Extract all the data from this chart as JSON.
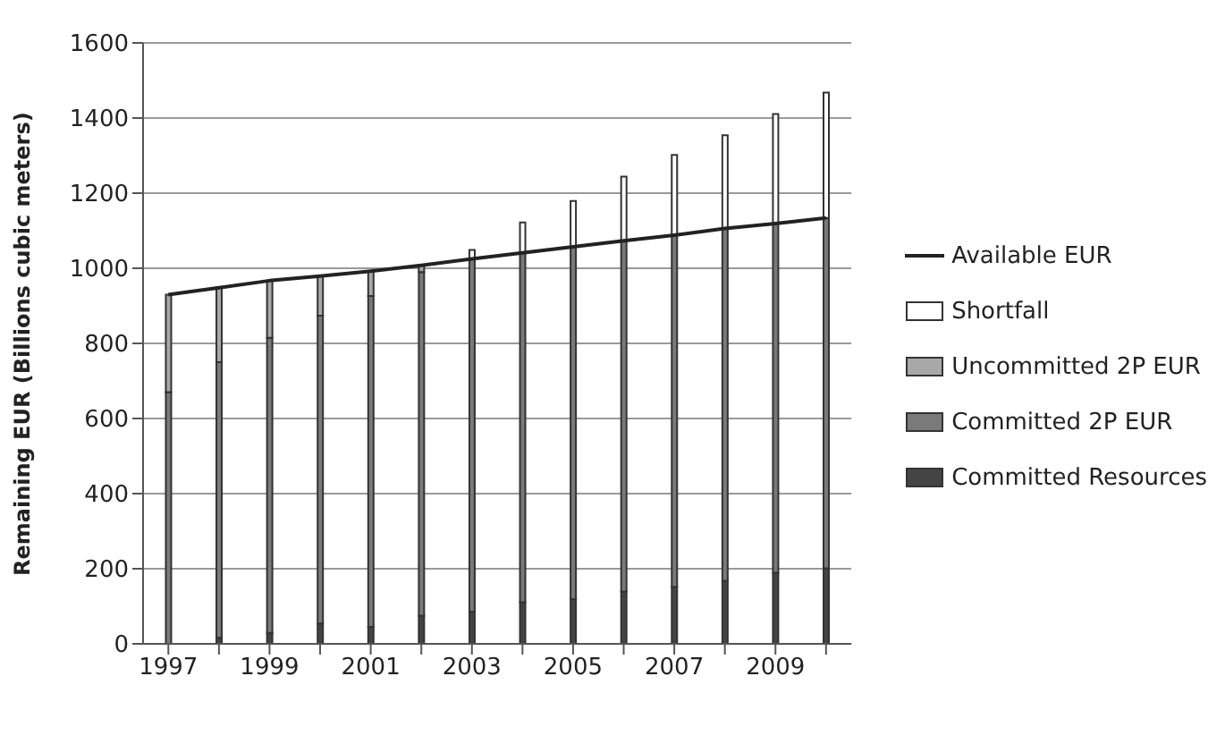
{
  "chart_data": {
    "type": "bar",
    "ylabel": "Remaining EUR (Billions cubic meters)",
    "categories": [
      "1997",
      null,
      "1999",
      null,
      "2001",
      null,
      "2003",
      null,
      "2005",
      null,
      "2007",
      null,
      "2009",
      null
    ],
    "stacked": true,
    "ylim": [
      0,
      1600
    ],
    "yticks": [
      0,
      200,
      400,
      600,
      800,
      1000,
      1200,
      1400,
      1600
    ],
    "grid": "y",
    "legend": "right",
    "marker": "none",
    "line_style": "solid",
    "series": [
      {
        "name": "Committed Resources",
        "color": "#444444",
        "values": [
          0,
          16,
          29,
          54,
          45,
          75,
          86,
          111,
          119,
          139,
          152,
          168,
          189,
          201
        ]
      },
      {
        "name": "Committed 2P EUR",
        "color": "#7a7a7a",
        "values": [
          670,
          734,
          786,
          820,
          881,
          915,
          939,
          930,
          938,
          934,
          936,
          938,
          930,
          933
        ]
      },
      {
        "name": "Uncommitted 2P EUR",
        "color": "#a8a8a8",
        "values": [
          260,
          198,
          152,
          105,
          66,
          18,
          0,
          0,
          0,
          0,
          0,
          0,
          0,
          0
        ]
      },
      {
        "name": "Shortfall",
        "color": "#ffffff",
        "values": [
          0,
          0,
          0,
          0,
          0,
          0,
          24,
          81,
          122,
          171,
          214,
          248,
          292,
          334
        ]
      },
      {
        "name": "Available EUR",
        "type": "line",
        "color": "#222222",
        "values": [
          930,
          948,
          967,
          979,
          992,
          1008,
          1025,
          1041,
          1057,
          1073,
          1088,
          1106,
          1119,
          1134
        ]
      }
    ]
  }
}
